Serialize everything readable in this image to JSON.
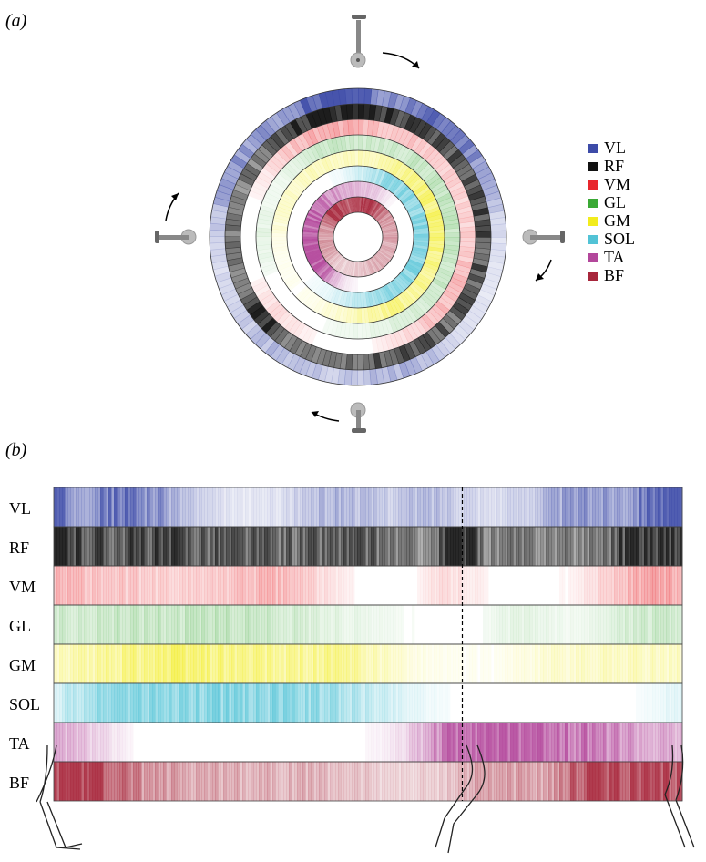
{
  "panels": {
    "a": "(a)",
    "b": "(b)"
  },
  "chart_data": [
    {
      "type": "heatmap",
      "layout": "polar",
      "rings_outer_to_inner": [
        "VL",
        "RF",
        "VM",
        "GL",
        "GM",
        "SOL",
        "TA",
        "BF"
      ],
      "angle_convention": "0 deg at top, clockwise, one crank revolution",
      "legend": {
        "placement": "right",
        "entries": [
          {
            "label": "VL",
            "color": "#3d4ba8"
          },
          {
            "label": "RF",
            "color": "#111111"
          },
          {
            "label": "VM",
            "color": "#e8262c"
          },
          {
            "label": "GL",
            "color": "#3aa935"
          },
          {
            "label": "GM",
            "color": "#f2ec1d"
          },
          {
            "label": "SOL",
            "color": "#52c3d6"
          },
          {
            "label": "TA",
            "color": "#b3479b"
          },
          {
            "label": "BF",
            "color": "#a7263b"
          }
        ]
      }
    },
    {
      "type": "heatmap",
      "layout": "linear",
      "rows": [
        "VL",
        "RF",
        "VM",
        "GL",
        "GM",
        "SOL",
        "TA",
        "BF"
      ],
      "x_domain": [
        0,
        1
      ],
      "marker_at": 0.65,
      "grid": false
    }
  ],
  "muscles": {
    "VL": {
      "color": "#3d4ba8",
      "base": 0.12,
      "peaks": [
        [
          0.06,
          0.08,
          0.35
        ],
        [
          0.13,
          0.06,
          0.4
        ],
        [
          0.45,
          0.05,
          0.3
        ],
        [
          0.6,
          0.05,
          0.25
        ],
        [
          0.85,
          0.07,
          0.45
        ],
        [
          0.97,
          0.03,
          0.75
        ]
      ]
    },
    "RF": {
      "color": "#111111",
      "base": 0.2,
      "peaks": [
        [
          0.1,
          0.12,
          0.5
        ],
        [
          0.3,
          0.1,
          0.35
        ],
        [
          0.48,
          0.08,
          0.4
        ],
        [
          0.645,
          0.018,
          0.85
        ],
        [
          0.75,
          0.12,
          0.35
        ],
        [
          0.96,
          0.05,
          0.65
        ]
      ]
    },
    "VM": {
      "color": "#e8262c",
      "base": 0.0,
      "peaks": [
        [
          0.12,
          0.12,
          0.22
        ],
        [
          0.35,
          0.07,
          0.28
        ],
        [
          0.63,
          0.04,
          0.15
        ],
        [
          0.95,
          0.07,
          0.3
        ]
      ]
    },
    "GL": {
      "color": "#3aa935",
      "base": 0.0,
      "peaks": [
        [
          0.05,
          0.07,
          0.1
        ],
        [
          0.25,
          0.16,
          0.3
        ],
        [
          0.75,
          0.05,
          0.12
        ],
        [
          0.93,
          0.05,
          0.18
        ]
      ]
    },
    "GM": {
      "color": "#f2ec1d",
      "base": 0.05,
      "peaks": [
        [
          0.2,
          0.14,
          0.55
        ],
        [
          0.45,
          0.07,
          0.3
        ],
        [
          0.8,
          0.05,
          0.12
        ],
        [
          0.9,
          0.05,
          0.15
        ]
      ]
    },
    "SOL": {
      "color": "#52c3d6",
      "base": 0.0,
      "peaks": [
        [
          0.08,
          0.06,
          0.3
        ],
        [
          0.22,
          0.12,
          0.6
        ],
        [
          0.42,
          0.1,
          0.45
        ]
      ]
    },
    "TA": {
      "color": "#b3479b",
      "base": 0.0,
      "peaks": [
        [
          0.03,
          0.05,
          0.3
        ],
        [
          0.64,
          0.04,
          0.35
        ],
        [
          0.74,
          0.1,
          0.9
        ],
        [
          0.9,
          0.07,
          0.35
        ]
      ]
    },
    "BF": {
      "color": "#a7263b",
      "base": 0.12,
      "peaks": [
        [
          0.04,
          0.05,
          0.75
        ],
        [
          0.15,
          0.12,
          0.3
        ],
        [
          0.4,
          0.1,
          0.2
        ],
        [
          0.7,
          0.06,
          0.3
        ],
        [
          0.88,
          0.06,
          0.85
        ]
      ]
    }
  }
}
